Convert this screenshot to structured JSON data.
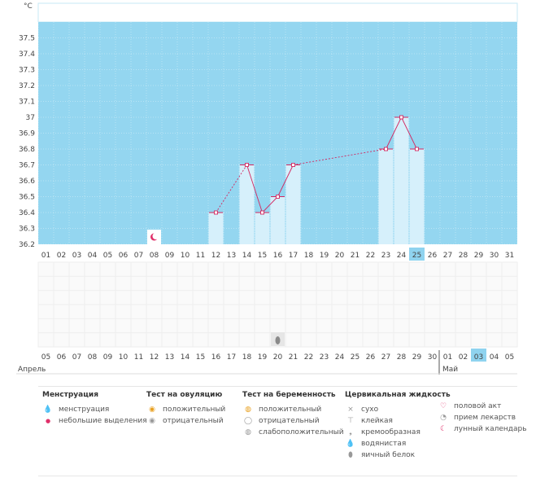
{
  "unit": "°C",
  "chart_data": {
    "type": "bar",
    "title": "",
    "ylim": [
      36.2,
      37.6
    ],
    "yticks": [
      "37.5",
      "37.4",
      "37.3",
      "37.2",
      "37.1",
      "37",
      "36.9",
      "36.8",
      "36.7",
      "36.6",
      "36.5",
      "36.4",
      "36.3",
      "36.2"
    ],
    "cycle_days": [
      "01",
      "02",
      "03",
      "04",
      "05",
      "06",
      "07",
      "08",
      "09",
      "10",
      "11",
      "12",
      "13",
      "14",
      "15",
      "16",
      "17",
      "18",
      "19",
      "20",
      "21",
      "22",
      "23",
      "24",
      "25",
      "26",
      "27",
      "28",
      "29",
      "30",
      "31"
    ],
    "dates": [
      "05",
      "06",
      "07",
      "08",
      "09",
      "10",
      "11",
      "12",
      "13",
      "14",
      "15",
      "16",
      "17",
      "18",
      "19",
      "20",
      "21",
      "22",
      "23",
      "24",
      "25",
      "26",
      "27",
      "28",
      "29",
      "30",
      "01",
      "02",
      "03",
      "04",
      "05"
    ],
    "weekend_dates_idx": [
      4,
      5,
      11,
      12,
      18,
      19,
      25
    ],
    "highlight_index": 24,
    "month_labels": [
      "Апрель",
      "Май"
    ],
    "temperatures": [
      {
        "day": 12,
        "value": 36.4
      },
      {
        "day": 14,
        "value": 36.7
      },
      {
        "day": 15,
        "value": 36.4
      },
      {
        "day": 16,
        "value": 36.5
      },
      {
        "day": 17,
        "value": 36.7
      },
      {
        "day": 23,
        "value": 36.8
      },
      {
        "day": 24,
        "value": 37.0
      },
      {
        "day": 25,
        "value": 36.8
      }
    ],
    "markers": {
      "moon_day": 8,
      "egg_white_day": 16
    }
  },
  "legend": {
    "columns": [
      {
        "title": "Менструация",
        "items": [
          {
            "icon": "drop-icon",
            "label": "менструация"
          },
          {
            "icon": "small-drop-icon",
            "label": "небольшие выделения"
          }
        ]
      },
      {
        "title": "Тест на овуляцию",
        "items": [
          {
            "icon": "ovulation-positive-icon",
            "label": "положительный"
          },
          {
            "icon": "ovulation-negative-icon",
            "label": "отрицательный"
          }
        ]
      },
      {
        "title": "Тест на беременность",
        "items": [
          {
            "icon": "pregnancy-positive-icon",
            "label": "положительный"
          },
          {
            "icon": "pregnancy-negative-icon",
            "label": "отрицательный"
          },
          {
            "icon": "pregnancy-weak-icon",
            "label": "слабоположительный"
          }
        ]
      },
      {
        "title": "Цервикальная жидкость",
        "items": [
          {
            "icon": "dry-icon",
            "label": "сухо"
          },
          {
            "icon": "sticky-icon",
            "label": "клейкая"
          },
          {
            "icon": "creamy-icon",
            "label": "кремообразная"
          },
          {
            "icon": "watery-icon",
            "label": "водянистая"
          },
          {
            "icon": "egg-white-icon",
            "label": "яичный белок"
          }
        ]
      },
      {
        "title": "",
        "items": [
          {
            "icon": "heart-icon",
            "label": "половой акт"
          },
          {
            "icon": "pill-icon",
            "label": "прием лекарств"
          },
          {
            "icon": "moon-icon",
            "label": "лунный календарь"
          }
        ]
      }
    ]
  },
  "colors": {
    "plot_bg": "#94d6f0",
    "bar": "#d6f0fb",
    "line": "#d3265f",
    "highlight": "#8fd3ef",
    "weekend": "#d3265f"
  }
}
